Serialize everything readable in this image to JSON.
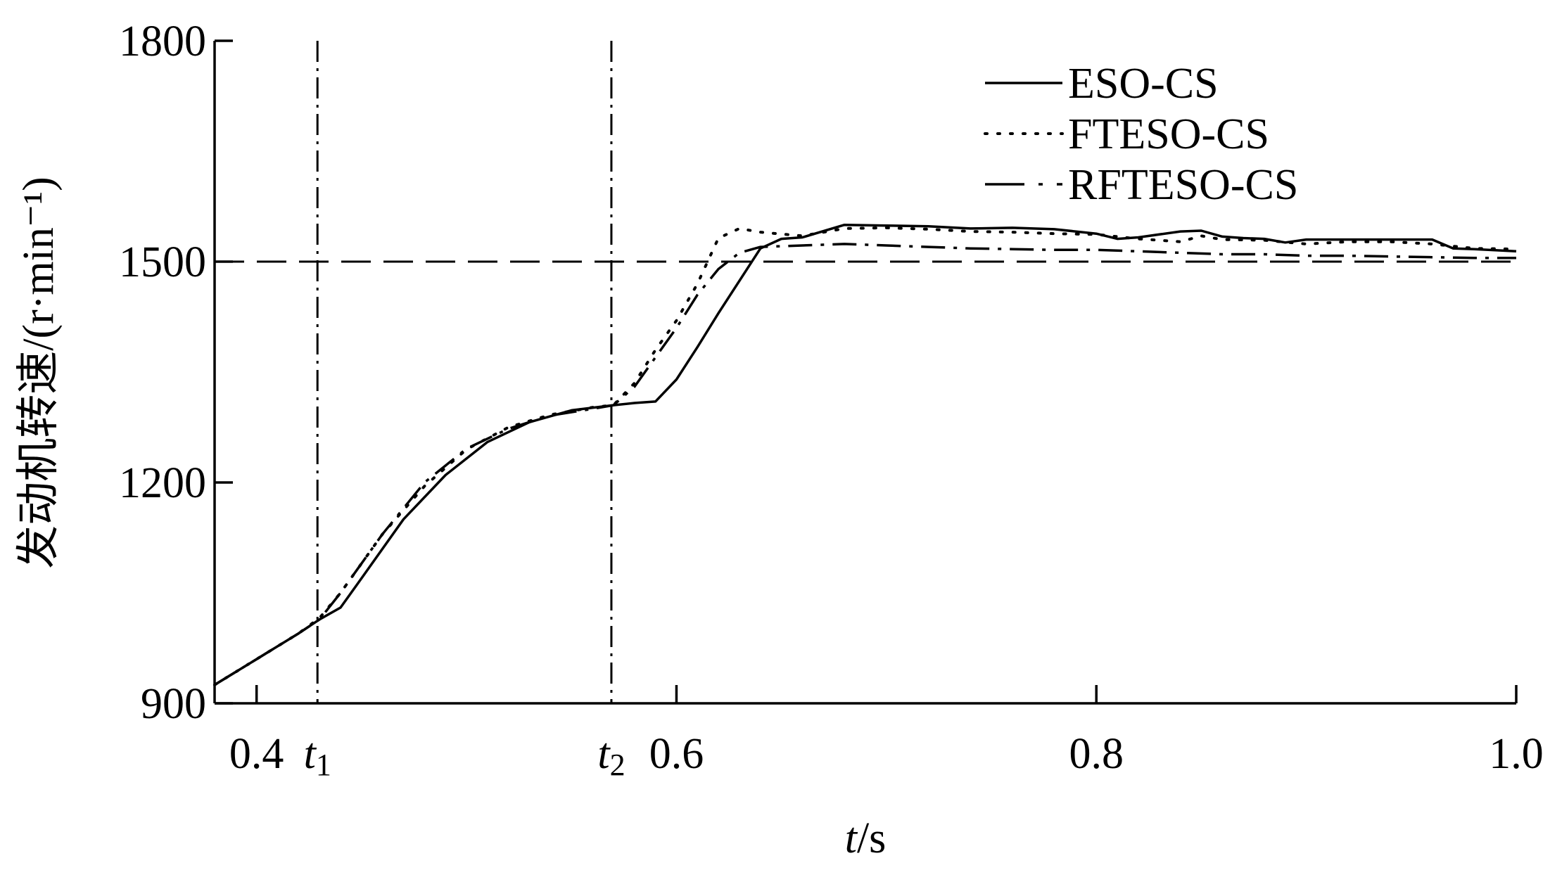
{
  "chart_data": {
    "type": "line",
    "title": "",
    "xlabel": "t/s",
    "ylabel": "发动机转速/(r·min⁻¹)",
    "xlim": [
      0.38,
      1.0
    ],
    "ylim": [
      900,
      1800
    ],
    "x_ticks": [
      0.4,
      0.6,
      0.8,
      1.0
    ],
    "x_tick_labels": [
      "0.4",
      "0.6",
      "0.8",
      "1.0"
    ],
    "y_ticks": [
      900,
      1200,
      1500,
      1800
    ],
    "y_tick_labels": [
      "900",
      "1200",
      "1500",
      "1800"
    ],
    "grid": false,
    "legend_position": "top-right",
    "markers": [
      {
        "label": "t1",
        "base": "t",
        "sub": "1",
        "x": 0.429
      },
      {
        "label": "t2",
        "base": "t",
        "sub": "2",
        "x": 0.569
      }
    ],
    "reference_line": {
      "y": 1500,
      "style": "dashed"
    },
    "series": [
      {
        "name": "ESO-CS",
        "style": "solid",
        "x": [
          0.38,
          0.4,
          0.42,
          0.43,
          0.44,
          0.45,
          0.47,
          0.49,
          0.51,
          0.53,
          0.55,
          0.57,
          0.58,
          0.59,
          0.6,
          0.61,
          0.62,
          0.64,
          0.65,
          0.66,
          0.68,
          0.7,
          0.72,
          0.74,
          0.76,
          0.78,
          0.8,
          0.81,
          0.82,
          0.84,
          0.85,
          0.86,
          0.87,
          0.88,
          0.89,
          0.9,
          0.92,
          0.94,
          0.96,
          0.97,
          0.98,
          1.0
        ],
        "y": [
          925,
          960,
          995,
          1014,
          1030,
          1070,
          1150,
          1210,
          1255,
          1282,
          1298,
          1305,
          1308,
          1310,
          1340,
          1384,
          1430,
          1518,
          1531,
          1533,
          1550,
          1549,
          1548,
          1545,
          1546,
          1544,
          1538,
          1531,
          1533,
          1541,
          1542,
          1534,
          1532,
          1531,
          1526,
          1530,
          1530,
          1530,
          1530,
          1518,
          1517,
          1514
        ]
      },
      {
        "name": "FTESO-CS",
        "style": "dotted",
        "x": [
          0.38,
          0.4,
          0.42,
          0.43,
          0.44,
          0.46,
          0.48,
          0.5,
          0.52,
          0.54,
          0.56,
          0.57,
          0.58,
          0.59,
          0.6,
          0.61,
          0.62,
          0.63,
          0.64,
          0.66,
          0.68,
          0.7,
          0.72,
          0.74,
          0.76,
          0.78,
          0.8,
          0.82,
          0.84,
          0.85,
          0.86,
          0.88,
          0.9,
          0.92,
          0.94,
          0.96,
          0.98,
          1.0
        ],
        "y": [
          925,
          960,
          995,
          1016,
          1050,
          1130,
          1195,
          1245,
          1275,
          1292,
          1302,
          1305,
          1335,
          1380,
          1420,
          1470,
          1532,
          1545,
          1540,
          1535,
          1545,
          1546,
          1544,
          1541,
          1540,
          1538,
          1537,
          1531,
          1527,
          1535,
          1530,
          1529,
          1524,
          1527,
          1527,
          1524,
          1518,
          1517
        ]
      },
      {
        "name": "RFTESO-CS",
        "style": "dash-dot",
        "x": [
          0.38,
          0.4,
          0.42,
          0.43,
          0.44,
          0.46,
          0.48,
          0.5,
          0.52,
          0.54,
          0.56,
          0.57,
          0.58,
          0.59,
          0.6,
          0.61,
          0.62,
          0.63,
          0.64,
          0.66,
          0.68,
          0.7,
          0.72,
          0.74,
          0.76,
          0.78,
          0.8,
          0.82,
          0.84,
          0.86,
          0.88,
          0.9,
          0.92,
          0.94,
          0.96,
          0.98,
          1.0
        ],
        "y": [
          925,
          960,
          995,
          1014,
          1050,
          1130,
          1200,
          1246,
          1273,
          1291,
          1300,
          1305,
          1330,
          1370,
          1410,
          1455,
          1490,
          1512,
          1520,
          1522,
          1524,
          1522,
          1520,
          1518,
          1517,
          1516,
          1516,
          1514,
          1512,
          1510,
          1510,
          1508,
          1508,
          1507,
          1506,
          1505,
          1505
        ]
      }
    ]
  }
}
